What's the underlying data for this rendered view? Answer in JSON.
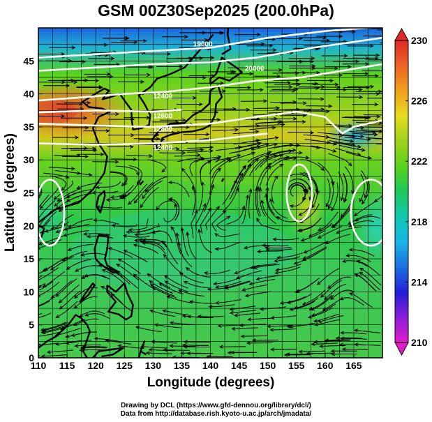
{
  "title": "GSM 00Z30Sep2025 (200.0hPa)",
  "x_axis": {
    "label": "Longitude (degrees)",
    "ticks": [
      110,
      115,
      120,
      125,
      130,
      135,
      140,
      145,
      150,
      155,
      160,
      165
    ],
    "range": [
      110,
      170
    ]
  },
  "y_axis": {
    "label": "Latitude  (degrees)",
    "ticks": [
      0,
      5,
      10,
      15,
      20,
      25,
      30,
      35,
      40,
      45
    ],
    "range": [
      0,
      50
    ]
  },
  "colorbar": {
    "ticks": [
      210,
      214,
      218,
      222,
      226,
      230
    ],
    "range": [
      210,
      230
    ],
    "colors": [
      "#e01ec8",
      "#8a1fd8",
      "#2121d6",
      "#1e6fe0",
      "#19b4e6",
      "#12c8b0",
      "#1ec85a",
      "#5ad21e",
      "#a0d21e",
      "#e6dc1e",
      "#f0a01e",
      "#ec6428",
      "#e02828"
    ]
  },
  "contour_labels": [
    "18600",
    "19000",
    "20000",
    "12400",
    "12600",
    "12800",
    "12400"
  ],
  "credits": {
    "line1": "Drawing by DCL (https://www.gfd-dennou.org/library/dcl/)",
    "line2": "Data from http://database.rish.kyoto-u.ac.jp/arch/jmadata/"
  },
  "colors": {
    "field_high": "#e0402a",
    "field_mid": "#6ad21e",
    "field_low": "#1e6fe0",
    "contour": "#ffffff",
    "coast": "#000000"
  }
}
